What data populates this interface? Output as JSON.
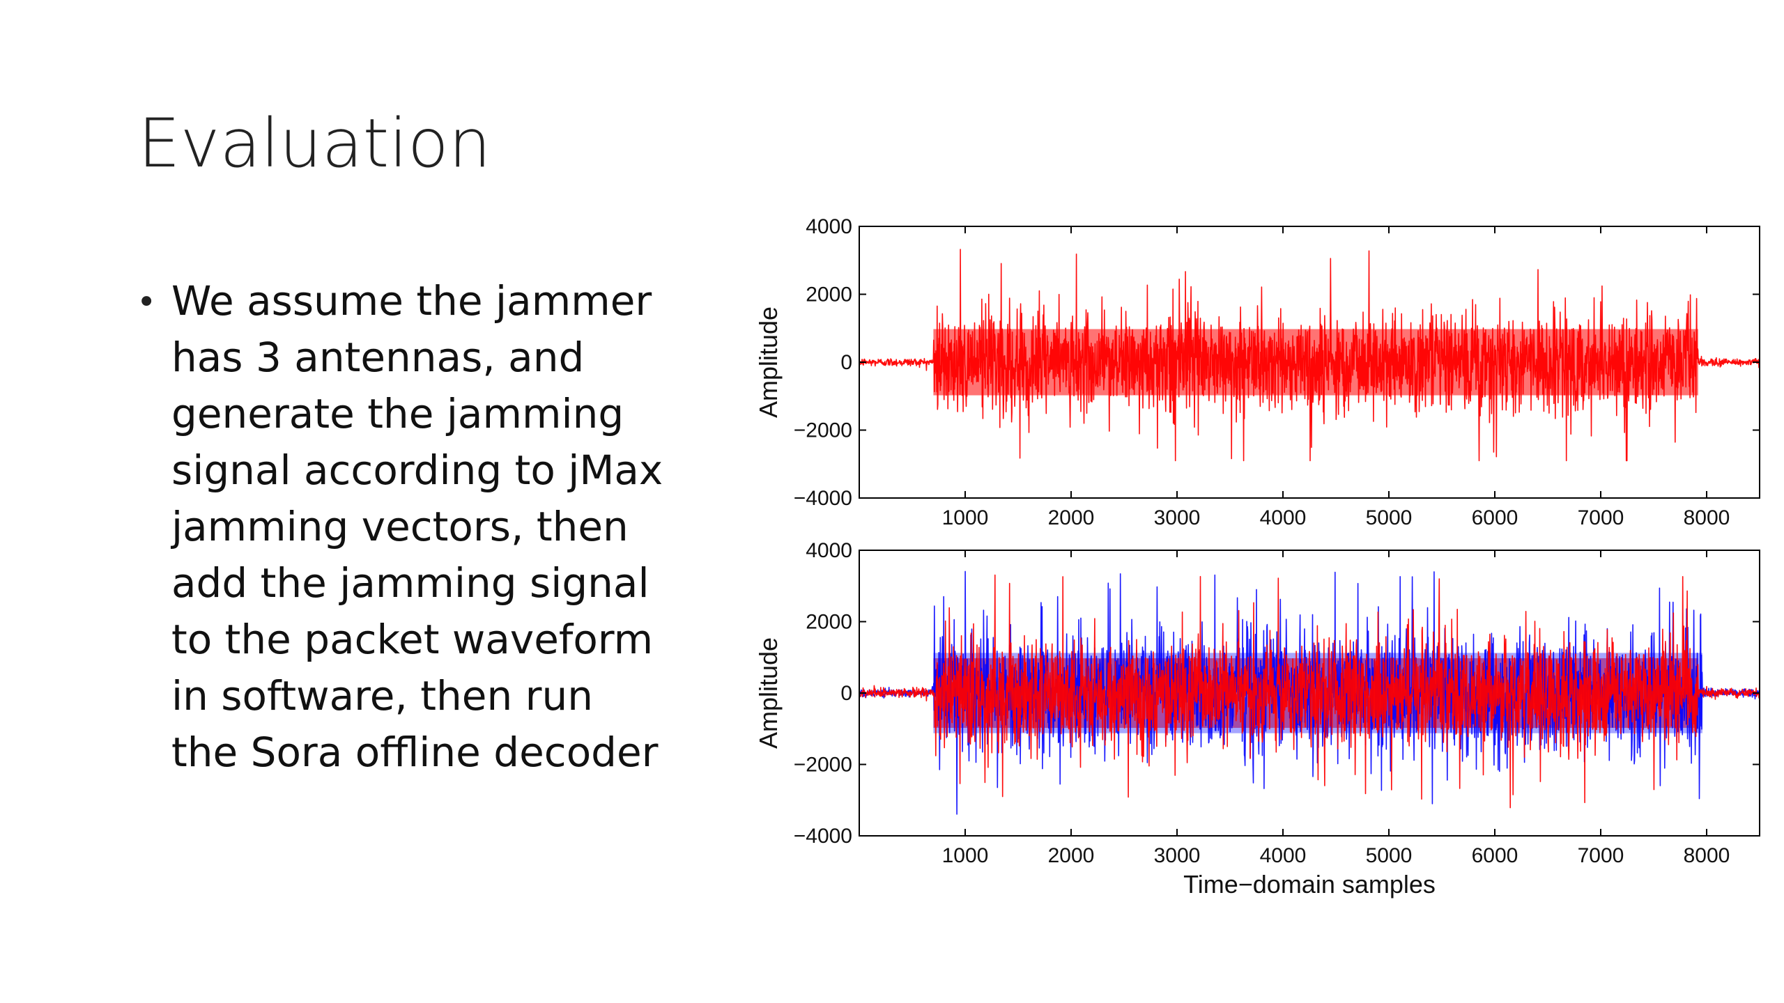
{
  "slide": {
    "title": "Evaluation",
    "bullet_lines": [
      "We assume the jammer",
      "has 3 antennas, and",
      "generate the jamming",
      "signal according to jMax",
      "jamming vectors, then",
      "add the jamming signal",
      "to the packet waveform",
      "in software, then run",
      "the Sora offline decoder"
    ]
  },
  "colors": {
    "series_red": "#ff0000",
    "series_blue": "#0000ff",
    "axis": "#000000"
  },
  "chart_data": [
    {
      "type": "line",
      "ylabel": "Amplitude",
      "xlabel": "",
      "xlim": [
        0,
        8500
      ],
      "ylim": [
        -4000,
        4000
      ],
      "xticks": [
        1000,
        2000,
        3000,
        4000,
        5000,
        6000,
        7000,
        8000
      ],
      "yticks": [
        4000,
        2000,
        0,
        -2000,
        -4000
      ],
      "grid": false,
      "series": [
        {
          "color": "#ff0000",
          "signal_start": 700,
          "signal_end": 7920,
          "idle_amplitude": 60,
          "typical_amplitude": 1300,
          "peak_amplitude": 3350,
          "min_amplitude": -2900
        }
      ]
    },
    {
      "type": "line",
      "ylabel": "Amplitude",
      "xlabel": "Time−domain samples",
      "xlim": [
        0,
        8500
      ],
      "ylim": [
        -4000,
        4000
      ],
      "xticks": [
        1000,
        2000,
        3000,
        4000,
        5000,
        6000,
        7000,
        8000
      ],
      "yticks": [
        4000,
        2000,
        0,
        -2000,
        -4000
      ],
      "grid": false,
      "series": [
        {
          "color": "#0000ff",
          "signal_start": 700,
          "signal_end": 7960,
          "idle_amplitude": 60,
          "typical_amplitude": 1500,
          "peak_amplitude": 3600,
          "min_amplitude": -3900
        },
        {
          "color": "#ff0000",
          "signal_start": 700,
          "signal_end": 7920,
          "idle_amplitude": 60,
          "typical_amplitude": 1300,
          "peak_amplitude": 3350,
          "min_amplitude": -3400
        }
      ]
    }
  ]
}
